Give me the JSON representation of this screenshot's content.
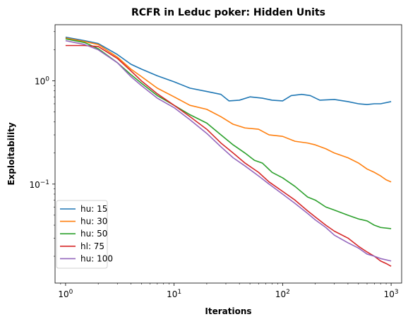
{
  "chart_data": {
    "type": "line",
    "title": "RCFR in Leduc poker: Hidden Units",
    "xlabel": "Iterations",
    "ylabel": "Exploitability",
    "xscale": "log",
    "yscale": "log",
    "xlim": [
      0.8,
      1250
    ],
    "ylim": [
      0.011,
      3.5
    ],
    "grid": false,
    "legend_position": "lower-left",
    "x_ticks": [
      {
        "value": 1,
        "base": "10",
        "exp": "0"
      },
      {
        "value": 10,
        "base": "10",
        "exp": "1"
      },
      {
        "value": 100,
        "base": "10",
        "exp": "2"
      },
      {
        "value": 1000,
        "base": "10",
        "exp": "3"
      }
    ],
    "y_ticks": [
      {
        "value": 0.1,
        "base": "10",
        "exp": "−1"
      },
      {
        "value": 1,
        "base": "10",
        "exp": "0"
      }
    ],
    "series": [
      {
        "name": "hu: 15",
        "color": "#1f77b4",
        "points": [
          [
            1,
            2.65
          ],
          [
            1.5,
            2.45
          ],
          [
            2,
            2.3
          ],
          [
            3,
            1.8
          ],
          [
            4,
            1.45
          ],
          [
            5,
            1.3
          ],
          [
            7,
            1.12
          ],
          [
            10,
            0.98
          ],
          [
            14,
            0.85
          ],
          [
            20,
            0.79
          ],
          [
            27,
            0.74
          ],
          [
            32,
            0.64
          ],
          [
            40,
            0.65
          ],
          [
            50,
            0.7
          ],
          [
            65,
            0.68
          ],
          [
            80,
            0.65
          ],
          [
            100,
            0.64
          ],
          [
            120,
            0.72
          ],
          [
            150,
            0.74
          ],
          [
            180,
            0.72
          ],
          [
            220,
            0.65
          ],
          [
            300,
            0.66
          ],
          [
            400,
            0.63
          ],
          [
            500,
            0.6
          ],
          [
            600,
            0.59
          ],
          [
            700,
            0.6
          ],
          [
            800,
            0.6
          ],
          [
            1000,
            0.63
          ]
        ]
      },
      {
        "name": "hu: 30",
        "color": "#ff7f0e",
        "points": [
          [
            1,
            2.6
          ],
          [
            1.5,
            2.4
          ],
          [
            2,
            2.25
          ],
          [
            3,
            1.7
          ],
          [
            4,
            1.3
          ],
          [
            5,
            1.1
          ],
          [
            7,
            0.85
          ],
          [
            10,
            0.7
          ],
          [
            14,
            0.58
          ],
          [
            20,
            0.53
          ],
          [
            27,
            0.45
          ],
          [
            35,
            0.38
          ],
          [
            45,
            0.35
          ],
          [
            60,
            0.34
          ],
          [
            75,
            0.3
          ],
          [
            100,
            0.29
          ],
          [
            130,
            0.26
          ],
          [
            170,
            0.25
          ],
          [
            200,
            0.24
          ],
          [
            250,
            0.22
          ],
          [
            300,
            0.2
          ],
          [
            400,
            0.18
          ],
          [
            500,
            0.16
          ],
          [
            600,
            0.14
          ],
          [
            700,
            0.13
          ],
          [
            800,
            0.12
          ],
          [
            900,
            0.11
          ],
          [
            1000,
            0.105
          ]
        ]
      },
      {
        "name": "hu: 50",
        "color": "#2ca02c",
        "points": [
          [
            1,
            2.55
          ],
          [
            1.5,
            2.35
          ],
          [
            2,
            2.05
          ],
          [
            3,
            1.5
          ],
          [
            4,
            1.15
          ],
          [
            5,
            0.95
          ],
          [
            7,
            0.72
          ],
          [
            10,
            0.58
          ],
          [
            14,
            0.47
          ],
          [
            20,
            0.39
          ],
          [
            27,
            0.3
          ],
          [
            35,
            0.24
          ],
          [
            45,
            0.2
          ],
          [
            55,
            0.17
          ],
          [
            65,
            0.16
          ],
          [
            80,
            0.13
          ],
          [
            100,
            0.115
          ],
          [
            130,
            0.095
          ],
          [
            170,
            0.075
          ],
          [
            200,
            0.07
          ],
          [
            250,
            0.06
          ],
          [
            300,
            0.056
          ],
          [
            400,
            0.05
          ],
          [
            500,
            0.046
          ],
          [
            600,
            0.044
          ],
          [
            700,
            0.04
          ],
          [
            800,
            0.038
          ],
          [
            1000,
            0.037
          ]
        ]
      },
      {
        "name": "hl: 75",
        "color": "#d62728",
        "points": [
          [
            1,
            2.2
          ],
          [
            1.5,
            2.2
          ],
          [
            2,
            2.15
          ],
          [
            3,
            1.65
          ],
          [
            4,
            1.25
          ],
          [
            5,
            1.0
          ],
          [
            7,
            0.75
          ],
          [
            10,
            0.58
          ],
          [
            14,
            0.45
          ],
          [
            20,
            0.34
          ],
          [
            27,
            0.25
          ],
          [
            35,
            0.2
          ],
          [
            45,
            0.16
          ],
          [
            60,
            0.13
          ],
          [
            75,
            0.105
          ],
          [
            100,
            0.085
          ],
          [
            130,
            0.07
          ],
          [
            170,
            0.055
          ],
          [
            200,
            0.048
          ],
          [
            250,
            0.04
          ],
          [
            300,
            0.035
          ],
          [
            400,
            0.03
          ],
          [
            500,
            0.025
          ],
          [
            600,
            0.022
          ],
          [
            700,
            0.02
          ],
          [
            800,
            0.018
          ],
          [
            900,
            0.017
          ],
          [
            1000,
            0.016
          ]
        ]
      },
      {
        "name": "hu: 100",
        "color": "#9467bd",
        "points": [
          [
            1,
            2.45
          ],
          [
            1.5,
            2.25
          ],
          [
            2,
            2.0
          ],
          [
            3,
            1.5
          ],
          [
            4,
            1.1
          ],
          [
            5,
            0.9
          ],
          [
            7,
            0.68
          ],
          [
            10,
            0.55
          ],
          [
            14,
            0.42
          ],
          [
            20,
            0.31
          ],
          [
            27,
            0.23
          ],
          [
            35,
            0.18
          ],
          [
            45,
            0.15
          ],
          [
            60,
            0.12
          ],
          [
            75,
            0.1
          ],
          [
            100,
            0.08
          ],
          [
            130,
            0.065
          ],
          [
            170,
            0.052
          ],
          [
            200,
            0.045
          ],
          [
            250,
            0.038
          ],
          [
            300,
            0.032
          ],
          [
            400,
            0.027
          ],
          [
            500,
            0.024
          ],
          [
            600,
            0.021
          ],
          [
            700,
            0.02
          ],
          [
            800,
            0.019
          ],
          [
            1000,
            0.018
          ]
        ]
      }
    ]
  }
}
